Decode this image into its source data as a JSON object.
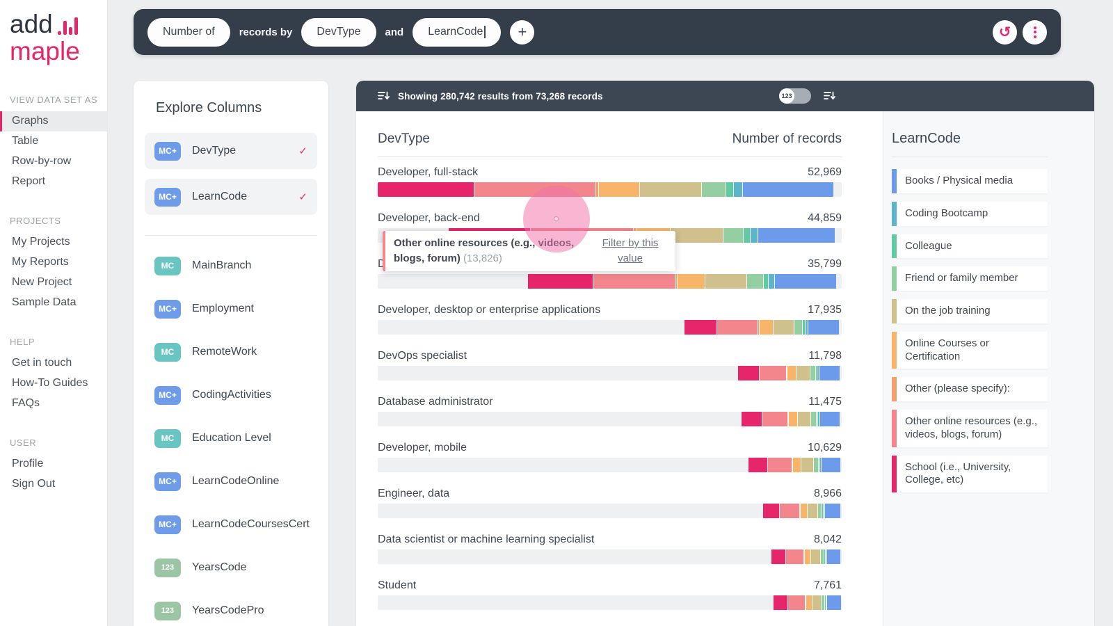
{
  "brand": {
    "name_top": "add",
    "name_bottom": "maple"
  },
  "query_bar": {
    "metric_pill": "Number of",
    "connector1": "records by",
    "field_pill_1": "DevType",
    "connector2": "and",
    "field_pill_2": "LearnCode",
    "add_button": "+"
  },
  "sidebar": {
    "sections": [
      {
        "label": "VIEW DATA SET AS",
        "items": [
          {
            "label": "Graphs",
            "active": true
          },
          {
            "label": "Table"
          },
          {
            "label": "Row-by-row"
          },
          {
            "label": "Report"
          }
        ]
      },
      {
        "label": "PROJECTS",
        "items": [
          {
            "label": "My Projects"
          },
          {
            "label": "My Reports"
          },
          {
            "label": "New Project"
          },
          {
            "label": "Sample Data"
          }
        ]
      },
      {
        "label": "HELP",
        "items": [
          {
            "label": "Get in touch"
          },
          {
            "label": "How-To Guides"
          },
          {
            "label": "FAQs"
          }
        ]
      },
      {
        "label": "USER",
        "items": [
          {
            "label": "Profile"
          },
          {
            "label": "Sign Out"
          }
        ]
      }
    ]
  },
  "explore": {
    "title": "Explore Columns",
    "selected": [
      {
        "badge": "MC+",
        "label": "DevType",
        "checked": true
      },
      {
        "badge": "MC+",
        "label": "LearnCode",
        "checked": true
      }
    ],
    "columns": [
      {
        "badge": "MC",
        "label": "MainBranch"
      },
      {
        "badge": "MC+",
        "label": "Employment"
      },
      {
        "badge": "MC",
        "label": "RemoteWork"
      },
      {
        "badge": "MC+",
        "label": "CodingActivities"
      },
      {
        "badge": "MC",
        "label": "Education Level"
      },
      {
        "badge": "MC+",
        "label": "LearnCodeOnline"
      },
      {
        "badge": "MC+",
        "label": "LearnCodeCoursesCert"
      },
      {
        "badge": "123",
        "label": "YearsCode"
      },
      {
        "badge": "123",
        "label": "YearsCodePro"
      }
    ]
  },
  "results_bar": {
    "summary": "Showing 280,742 results from 73,268 records",
    "toggle_label": "123"
  },
  "chart": {
    "col_header_left": "DevType",
    "col_header_right": "Number of records"
  },
  "chart_data": {
    "type": "bar",
    "orientation": "horizontal",
    "stacked": true,
    "title": "Number of records by DevType and LearnCode",
    "categories": [
      "Developer, full-stack",
      "Developer, back-end",
      "Developer, front-end",
      "Developer, desktop or enterprise applications",
      "DevOps specialist",
      "Database administrator",
      "Developer, mobile",
      "Engineer, data",
      "Data scientist or machine learning specialist",
      "Student"
    ],
    "values": [
      52969,
      44859,
      35799,
      17935,
      11798,
      11475,
      10629,
      8966,
      8042,
      7761
    ],
    "value_axis_max": 52969,
    "stack_order": [
      "School (i.e., University, College, etc)",
      "Other online resources (e.g., videos, blogs, forum)",
      "Other (please specify):",
      "Online Courses or Certification",
      "On the job training",
      "Friend or family member",
      "Colleague",
      "Coding Bootcamp",
      "Books / Physical media"
    ],
    "stack_colors": [
      "#e7256b",
      "#f2868c",
      "#f2a06e",
      "#f8b56a",
      "#cfc08c",
      "#94cfa1",
      "#62caa2",
      "#5db5c9",
      "#6d9bec"
    ],
    "stack_shares_estimated": [
      0.208,
      0.262,
      0.007,
      0.088,
      0.134,
      0.052,
      0.017,
      0.019,
      0.195
    ],
    "hovered": {
      "category": "Developer, full-stack",
      "stack": "Other online resources (e.g., videos, blogs, forum)",
      "value": 13826
    }
  },
  "tooltip": {
    "label": "Other online resources (e.g., videos, blogs, forum)",
    "value": "(13,826)",
    "action": "Filter by this value"
  },
  "legend": {
    "title": "LearnCode",
    "items": [
      {
        "label": "Books / Physical media",
        "color": "#6d9bec"
      },
      {
        "label": "Coding Bootcamp",
        "color": "#5db5c9"
      },
      {
        "label": "Colleague",
        "color": "#62caa2"
      },
      {
        "label": "Friend or family member",
        "color": "#94cfa1"
      },
      {
        "label": "On the job training",
        "color": "#cfc08c"
      },
      {
        "label": "Online Courses or Certification",
        "color": "#f8b56a"
      },
      {
        "label": "Other (please specify):",
        "color": "#f2a06e"
      },
      {
        "label": "Other online resources (e.g., videos, blogs, forum)",
        "color": "#f2868c"
      },
      {
        "label": "School (i.e., University, College, etc)",
        "color": "#e7256b"
      }
    ]
  }
}
